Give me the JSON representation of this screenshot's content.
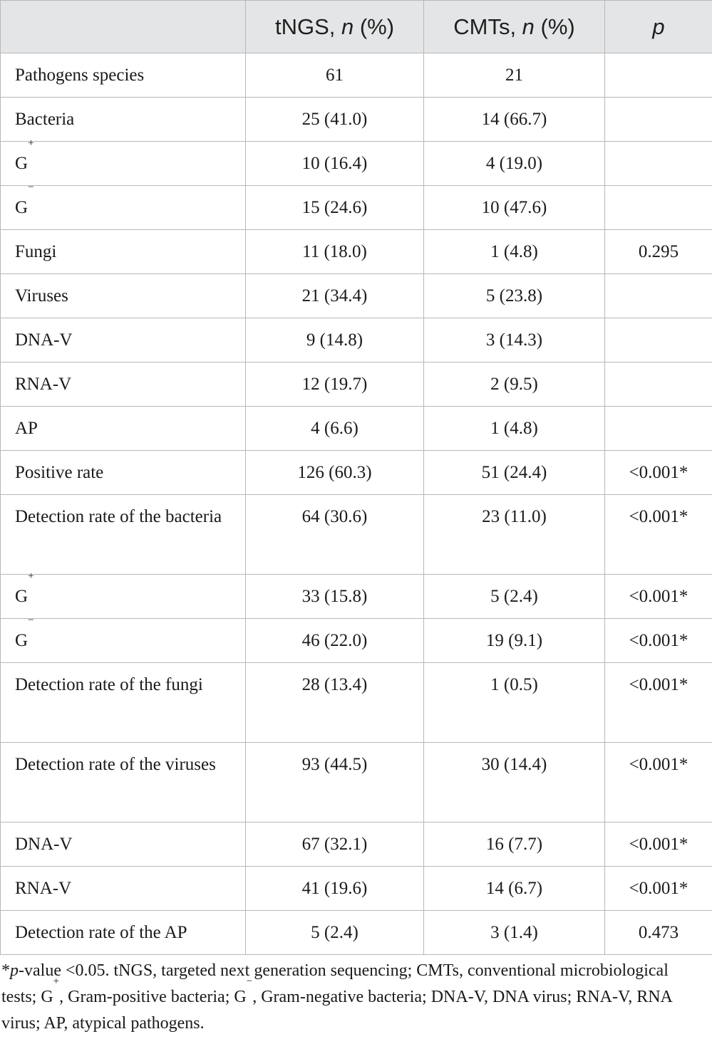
{
  "table": {
    "headers": {
      "col0": "",
      "col1_prefix": "tNGS, ",
      "col1_n": "n",
      "col1_suffix": " (%)",
      "col2_prefix": "CMTs, ",
      "col2_n": "n",
      "col2_suffix": " (%)",
      "col3": "p"
    },
    "rows": [
      {
        "label": "Pathogens species",
        "sup": "",
        "tngs": "61",
        "cmts": "21",
        "p": ""
      },
      {
        "label": "Bacteria",
        "sup": "",
        "tngs": "25 (41.0)",
        "cmts": "14 (66.7)",
        "p": ""
      },
      {
        "label": "G",
        "sup": "+",
        "tngs": "10 (16.4)",
        "cmts": "4 (19.0)",
        "p": ""
      },
      {
        "label": "G",
        "sup": "−",
        "tngs": "15 (24.6)",
        "cmts": "10 (47.6)",
        "p": ""
      },
      {
        "label": "Fungi",
        "sup": "",
        "tngs": "11 (18.0)",
        "cmts": "1 (4.8)",
        "p": "0.295"
      },
      {
        "label": "Viruses",
        "sup": "",
        "tngs": "21 (34.4)",
        "cmts": "5 (23.8)",
        "p": ""
      },
      {
        "label": "DNA-V",
        "sup": "",
        "tngs": "9 (14.8)",
        "cmts": "3 (14.3)",
        "p": ""
      },
      {
        "label": "RNA-V",
        "sup": "",
        "tngs": "12 (19.7)",
        "cmts": "2 (9.5)",
        "p": ""
      },
      {
        "label": "AP",
        "sup": "",
        "tngs": "4 (6.6)",
        "cmts": "1 (4.8)",
        "p": ""
      },
      {
        "label": "Positive rate",
        "sup": "",
        "tngs": "126 (60.3)",
        "cmts": "51 (24.4)",
        "p": "<0.001*"
      },
      {
        "label": "Detection rate of the bacteria",
        "sup": "",
        "tngs": "64 (30.6)",
        "cmts": "23 (11.0)",
        "p": "<0.001*",
        "tall": true
      },
      {
        "label": "G",
        "sup": "+",
        "tngs": "33 (15.8)",
        "cmts": "5 (2.4)",
        "p": "<0.001*"
      },
      {
        "label": "G",
        "sup": "−",
        "tngs": "46 (22.0)",
        "cmts": "19 (9.1)",
        "p": "<0.001*"
      },
      {
        "label": "Detection rate of the fungi",
        "sup": "",
        "tngs": "28 (13.4)",
        "cmts": "1 (0.5)",
        "p": "<0.001*",
        "tall": true
      },
      {
        "label": "Detection rate of the viruses",
        "sup": "",
        "tngs": "93 (44.5)",
        "cmts": "30 (14.4)",
        "p": "<0.001*",
        "tall": true
      },
      {
        "label": "DNA-V",
        "sup": "",
        "tngs": "67 (32.1)",
        "cmts": "16 (7.7)",
        "p": "<0.001*"
      },
      {
        "label": "RNA-V",
        "sup": "",
        "tngs": "41 (19.6)",
        "cmts": "14 (6.7)",
        "p": "<0.001*"
      },
      {
        "label": "Detection rate of the AP",
        "sup": "",
        "tngs": "5 (2.4)",
        "cmts": "3 (1.4)",
        "p": "0.473"
      }
    ]
  },
  "footnote": {
    "star": "*",
    "p_italic": "p",
    "part1": "-value <0.05. tNGS, targeted next generation sequencing; CMTs, conventional microbiological tests; G",
    "sup_plus": "+",
    "part2": ", Gram-positive bacteria; G",
    "sup_minus": "−",
    "part3": ", Gram-negative bacteria; DNA-V, DNA virus; RNA-V, RNA virus; AP, atypical pathogens."
  }
}
